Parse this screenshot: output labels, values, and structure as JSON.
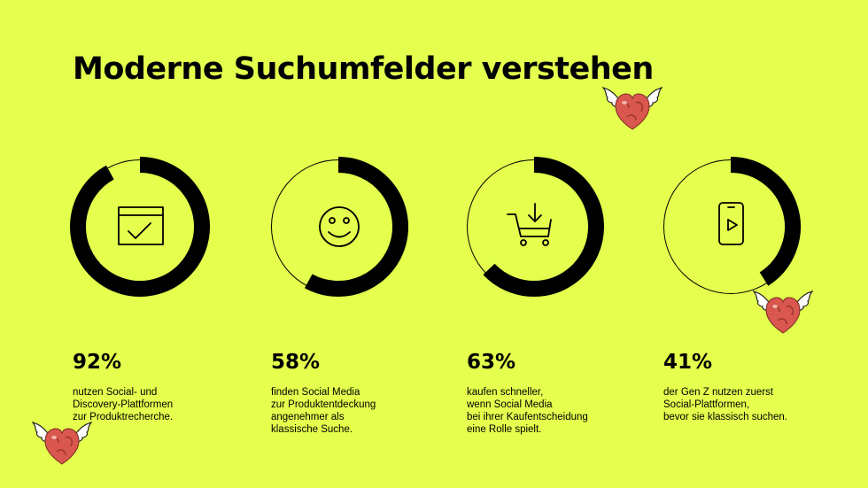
{
  "slide": {
    "background": "#e4ff4d",
    "title": "Moderne Suchumfelder verstehen"
  },
  "chart_data": {
    "type": "donut",
    "ring_color": "#000000",
    "items": [
      {
        "value": 92,
        "label": "92%",
        "icon": "box-check-icon",
        "lines": [
          "nutzen Social- und",
          "Discovery-Plattformen",
          "zur Produktrecherche."
        ]
      },
      {
        "value": 58,
        "label": "58%",
        "icon": "smiley-icon",
        "lines": [
          "finden Social Media",
          "zur Produktentdeckung",
          "angenehmer als",
          "klassische Suche."
        ]
      },
      {
        "value": 63,
        "label": "63%",
        "icon": "shopping-cart-download-icon",
        "lines": [
          "kaufen schneller,",
          "wenn Social Media",
          "bei ihrer Kaufentscheidung",
          "eine Rolle spielt."
        ]
      },
      {
        "value": 41,
        "label": "41%",
        "icon": "smartphone-play-icon",
        "lines": [
          "der Gen Z nutzen zuerst",
          "Social-Plattformen,",
          "bevor sie klassisch suchen."
        ]
      }
    ]
  },
  "decorations": {
    "mascot_icon": "winged-heart-icon",
    "heart_color": "#d9574e",
    "wing_color": "#ffffff"
  }
}
